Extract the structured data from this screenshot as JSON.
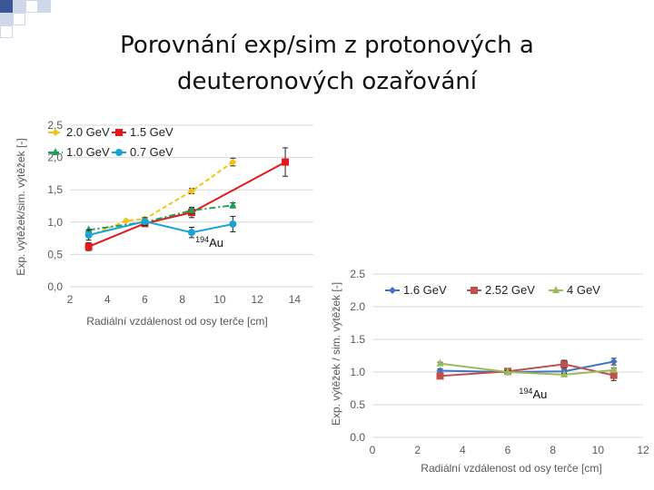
{
  "slide": {
    "title_line1": "Porovnání exp/sim z protonových a",
    "title_line2": "deuteronových ozařování"
  },
  "colors": {
    "deco_squares": "#cfd8ea",
    "deco_squares_dark": "#3b5896",
    "grid": "#d9d9d9",
    "axis_text": "#595959"
  },
  "chart_data": [
    {
      "type": "line",
      "xlabel": "Radiální vzdálenost od osy terče [cm]",
      "ylabel": "Exp. výtěžek/sim. výtěžek [-]",
      "xticks": [
        "2",
        "4",
        "6",
        "8",
        "10",
        "12",
        "14"
      ],
      "yticks": [
        "0,0",
        "0,5",
        "1,0",
        "1,5",
        "2,0",
        "2,5"
      ],
      "xlim": [
        2,
        15
      ],
      "ylim": [
        0,
        2.5
      ],
      "grid": "horizontal",
      "legend_position": "top-left",
      "annotation": {
        "sup": "194",
        "text": "Au",
        "x": 8.7,
        "y": 0.62
      },
      "series": [
        {
          "name": "2.0 GeV",
          "color": "#f2c414",
          "marker": "diamond",
          "dash": "dashed",
          "x": [
            3,
            5,
            6,
            8.5,
            10.7
          ],
          "y": [
            0.78,
            1.02,
            1.05,
            1.48,
            1.93
          ],
          "err": [
            0,
            0,
            0,
            0.04,
            0.06
          ]
        },
        {
          "name": "1.5 GeV",
          "color": "#e31a1c",
          "marker": "square",
          "dash": "solid",
          "x": [
            3,
            6,
            8.5,
            13.5
          ],
          "y": [
            0.62,
            0.98,
            1.15,
            1.93
          ],
          "err": [
            0.06,
            0.05,
            0.08,
            0.22
          ]
        },
        {
          "name": "1.0 GeV",
          "color": "#1f9e57",
          "marker": "triangle",
          "dash": "dashdot",
          "x": [
            3,
            6,
            8.5,
            10.7
          ],
          "y": [
            0.88,
            1.0,
            1.18,
            1.26
          ],
          "err": [
            0,
            0.04,
            0.04,
            0.04
          ]
        },
        {
          "name": "0.7 GeV",
          "color": "#1ba3d6",
          "marker": "circle",
          "dash": "solid",
          "x": [
            3,
            6,
            8.5,
            10.7
          ],
          "y": [
            0.8,
            1.01,
            0.84,
            0.97
          ],
          "err": [
            0.08,
            0.06,
            0.08,
            0.12
          ]
        }
      ]
    },
    {
      "type": "line",
      "xlabel": "Radiální vzdálenost od osy terče [cm]",
      "ylabel": "Exp. výtěžek / sim. výtěžek [-]",
      "xticks": [
        "0",
        "2",
        "4",
        "6",
        "8",
        "10",
        "12"
      ],
      "yticks": [
        "0.0",
        "0.5",
        "1.0",
        "1.5",
        "2.0",
        "2.5"
      ],
      "xlim": [
        0,
        12
      ],
      "ylim": [
        0,
        2.5
      ],
      "grid": "horizontal",
      "legend_position": "top",
      "annotation": {
        "sup": "194",
        "text": "Au",
        "x": 6.5,
        "y": 0.6
      },
      "series": [
        {
          "name": "1.6 GeV",
          "color": "#4472c4",
          "marker": "diamond",
          "dash": "solid",
          "x": [
            3,
            6,
            8.5,
            10.7
          ],
          "y": [
            1.02,
            1.0,
            1.01,
            1.16
          ],
          "err": [
            0.03,
            0.03,
            0.03,
            0.05
          ]
        },
        {
          "name": "2.52 GeV",
          "color": "#c0504d",
          "marker": "square",
          "dash": "solid",
          "x": [
            3,
            6,
            8.5,
            10.7
          ],
          "y": [
            0.94,
            1.01,
            1.12,
            0.95
          ],
          "err": [
            0.03,
            0.03,
            0.06,
            0.08
          ]
        },
        {
          "name": "4 GeV",
          "color": "#9bbb59",
          "marker": "triangle",
          "dash": "solid",
          "x": [
            3,
            6,
            8.5,
            10.7
          ],
          "y": [
            1.13,
            1.0,
            0.96,
            1.03
          ],
          "err": [
            0.02,
            0.02,
            0.02,
            0.03
          ]
        }
      ]
    }
  ]
}
